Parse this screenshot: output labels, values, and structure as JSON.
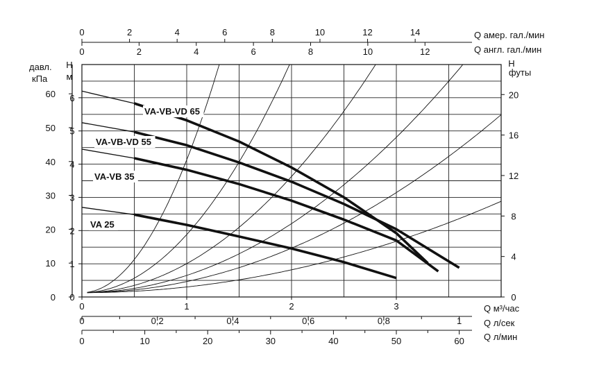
{
  "chart_data": {
    "type": "line",
    "x_unit": "m³/h",
    "x_range": [
      0,
      4
    ],
    "y_range_m": [
      0,
      7
    ],
    "axes": {
      "top_us": {
        "label": "Q  амер. гал./мин",
        "ticks": [
          "0",
          "2",
          "4",
          "6",
          "8",
          "10",
          "12",
          "14"
        ],
        "values": [
          0,
          2,
          4,
          6,
          8,
          10,
          12,
          14
        ]
      },
      "top_uk": {
        "label": "Q  англ. гал./мин",
        "ticks": [
          "0",
          "2",
          "4",
          "6",
          "8",
          "10",
          "12"
        ],
        "values": [
          0,
          2,
          4,
          6,
          8,
          10,
          12
        ]
      },
      "bottom_m3h": {
        "label": "Q  м³/час",
        "ticks": [
          "0",
          "1",
          "2",
          "3"
        ],
        "values": [
          0,
          1,
          2,
          3
        ]
      },
      "bottom_ls": {
        "label": "Q  л/сек",
        "ticks": [
          "0",
          "0,2",
          "0,4",
          "0,6",
          "0,8",
          "1"
        ],
        "values": [
          0,
          0.2,
          0.4,
          0.6,
          0.8,
          1
        ]
      },
      "bottom_lmin": {
        "label": "Q  л/мин",
        "ticks": [
          "0",
          "10",
          "20",
          "30",
          "40",
          "50",
          "60"
        ],
        "values": [
          0,
          10,
          20,
          30,
          40,
          50,
          60
        ]
      },
      "left_kpa": {
        "label_line1": "давл.",
        "label_line2": "кПа",
        "ticks": [
          "0",
          "10",
          "20",
          "30",
          "40",
          "50",
          "60"
        ],
        "values": [
          0,
          10,
          20,
          30,
          40,
          50,
          60
        ]
      },
      "left_m": {
        "label_line1": "H",
        "label_line2": "м",
        "ticks": [
          "0",
          "1",
          "2",
          "3",
          "4",
          "5",
          "6"
        ],
        "values": [
          0,
          1,
          2,
          3,
          4,
          5,
          6
        ]
      },
      "right_ft": {
        "label_line1": "H",
        "label_line2": "футы",
        "ticks": [
          "0",
          "4",
          "8",
          "12",
          "16",
          "20"
        ],
        "values": [
          0,
          4,
          8,
          12,
          16,
          20
        ]
      }
    },
    "series": [
      {
        "name": "VA-VB-VD 65",
        "x": [
          0,
          0.5,
          1.0,
          1.5,
          2.0,
          2.5,
          3.0,
          3.3
        ],
        "y": [
          6.2,
          5.83,
          5.32,
          4.68,
          3.9,
          3.0,
          1.92,
          1.02
        ]
      },
      {
        "name": "VA-VB-VD 55",
        "x": [
          0,
          0.5,
          1.0,
          1.5,
          2.0,
          2.5,
          3.0,
          3.6
        ],
        "y": [
          5.25,
          4.97,
          4.57,
          4.05,
          3.47,
          2.8,
          2.04,
          0.88
        ]
      },
      {
        "name": "VA-VB 35",
        "x": [
          0,
          0.5,
          1.0,
          1.5,
          2.0,
          2.5,
          3.0,
          3.4
        ],
        "y": [
          4.45,
          4.18,
          3.83,
          3.4,
          2.9,
          2.33,
          1.7,
          0.77
        ]
      },
      {
        "name": "VA 25",
        "x": [
          0,
          0.5,
          1.0,
          1.5,
          2.0,
          2.5,
          3.0
        ],
        "y": [
          2.7,
          2.48,
          2.17,
          1.82,
          1.46,
          1.05,
          0.57
        ]
      }
    ],
    "system_curves": {
      "coefficients": [
        4.0,
        1.75,
        0.875,
        0.52,
        0.335,
        0.172
      ],
      "offset": 0.13
    }
  }
}
